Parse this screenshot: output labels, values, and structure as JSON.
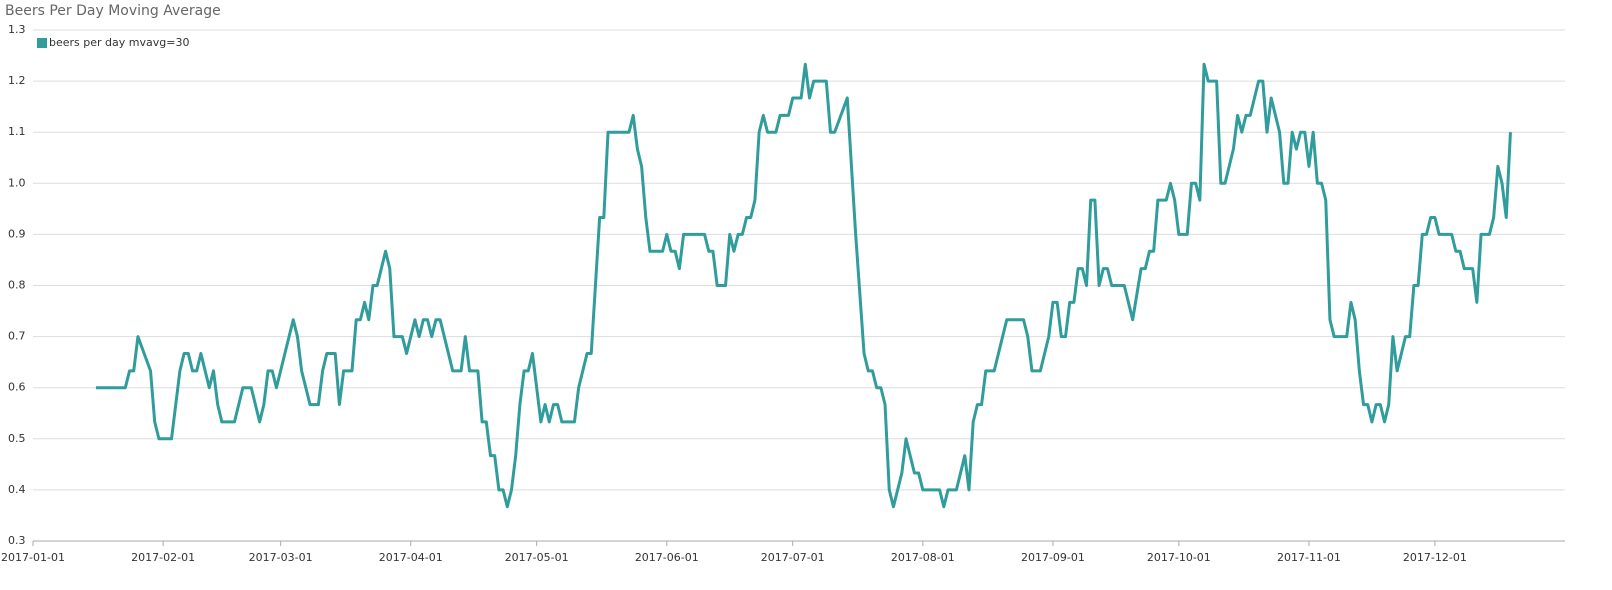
{
  "chart_data": {
    "type": "line",
    "title": "Beers Per Day Moving Average",
    "x": [
      "2017-01-16",
      "2017-01-23",
      "2017-01-24",
      "2017-01-25",
      "2017-01-26",
      "2017-01-29",
      "2017-01-30",
      "2017-01-31",
      "2017-02-03",
      "2017-02-05",
      "2017-02-06",
      "2017-02-07",
      "2017-02-08",
      "2017-02-09",
      "2017-02-10",
      "2017-02-12",
      "2017-02-13",
      "2017-02-14",
      "2017-02-15",
      "2017-02-18",
      "2017-02-20",
      "2017-02-22",
      "2017-02-24",
      "2017-02-25",
      "2017-02-26",
      "2017-02-27",
      "2017-02-28",
      "2017-03-04",
      "2017-03-05",
      "2017-03-06",
      "2017-03-08",
      "2017-03-10",
      "2017-03-11",
      "2017-03-12",
      "2017-03-14",
      "2017-03-15",
      "2017-03-16",
      "2017-03-18",
      "2017-03-19",
      "2017-03-20",
      "2017-03-21",
      "2017-03-22",
      "2017-03-23",
      "2017-03-24",
      "2017-03-26",
      "2017-03-27",
      "2017-03-28",
      "2017-03-30",
      "2017-03-31",
      "2017-04-02",
      "2017-04-03",
      "2017-04-04",
      "2017-04-05",
      "2017-04-06",
      "2017-04-07",
      "2017-04-08",
      "2017-04-11",
      "2017-04-13",
      "2017-04-14",
      "2017-04-15",
      "2017-04-17",
      "2017-04-18",
      "2017-04-19",
      "2017-04-20",
      "2017-04-21",
      "2017-04-22",
      "2017-04-23",
      "2017-04-24",
      "2017-04-25",
      "2017-04-26",
      "2017-04-27",
      "2017-04-28",
      "2017-04-29",
      "2017-04-30",
      "2017-05-02",
      "2017-05-03",
      "2017-05-04",
      "2017-05-05",
      "2017-05-06",
      "2017-05-07",
      "2017-05-10",
      "2017-05-11",
      "2017-05-13",
      "2017-05-14",
      "2017-05-16",
      "2017-05-17",
      "2017-05-18",
      "2017-05-23",
      "2017-05-24",
      "2017-05-25",
      "2017-05-26",
      "2017-05-27",
      "2017-05-28",
      "2017-05-31",
      "2017-06-01",
      "2017-06-02",
      "2017-06-03",
      "2017-06-04",
      "2017-06-05",
      "2017-06-10",
      "2017-06-11",
      "2017-06-12",
      "2017-06-13",
      "2017-06-15",
      "2017-06-16",
      "2017-06-17",
      "2017-06-18",
      "2017-06-19",
      "2017-06-20",
      "2017-06-21",
      "2017-06-22",
      "2017-06-23",
      "2017-06-24",
      "2017-06-25",
      "2017-06-27",
      "2017-06-28",
      "2017-06-30",
      "2017-07-01",
      "2017-07-03",
      "2017-07-04",
      "2017-07-05",
      "2017-07-06",
      "2017-07-09",
      "2017-07-10",
      "2017-07-11",
      "2017-07-14",
      "2017-07-16",
      "2017-07-18",
      "2017-07-19",
      "2017-07-20",
      "2017-07-21",
      "2017-07-22",
      "2017-07-23",
      "2017-07-24",
      "2017-07-25",
      "2017-07-27",
      "2017-07-28",
      "2017-07-30",
      "2017-07-31",
      "2017-08-01",
      "2017-08-05",
      "2017-08-06",
      "2017-08-07",
      "2017-08-09",
      "2017-08-11",
      "2017-08-12",
      "2017-08-13",
      "2017-08-14",
      "2017-08-15",
      "2017-08-16",
      "2017-08-18",
      "2017-08-21",
      "2017-08-25",
      "2017-08-26",
      "2017-08-27",
      "2017-08-29",
      "2017-08-31",
      "2017-09-01",
      "2017-09-02",
      "2017-09-03",
      "2017-09-04",
      "2017-09-05",
      "2017-09-06",
      "2017-09-07",
      "2017-09-08",
      "2017-09-09",
      "2017-09-10",
      "2017-09-11",
      "2017-09-12",
      "2017-09-13",
      "2017-09-14",
      "2017-09-15",
      "2017-09-18",
      "2017-09-20",
      "2017-09-22",
      "2017-09-23",
      "2017-09-24",
      "2017-09-25",
      "2017-09-26",
      "2017-09-28",
      "2017-09-29",
      "2017-09-30",
      "2017-10-01",
      "2017-10-03",
      "2017-10-04",
      "2017-10-05",
      "2017-10-06",
      "2017-10-07",
      "2017-10-08",
      "2017-10-10",
      "2017-10-11",
      "2017-10-12",
      "2017-10-14",
      "2017-10-15",
      "2017-10-16",
      "2017-10-17",
      "2017-10-18",
      "2017-10-20",
      "2017-10-21",
      "2017-10-22",
      "2017-10-23",
      "2017-10-25",
      "2017-10-26",
      "2017-10-27",
      "2017-10-28",
      "2017-10-29",
      "2017-10-30",
      "2017-10-31",
      "2017-11-01",
      "2017-11-02",
      "2017-11-03",
      "2017-11-04",
      "2017-11-05",
      "2017-11-06",
      "2017-11-07",
      "2017-11-10",
      "2017-11-11",
      "2017-11-12",
      "2017-11-13",
      "2017-11-14",
      "2017-11-15",
      "2017-11-16",
      "2017-11-17",
      "2017-11-18",
      "2017-11-19",
      "2017-11-20",
      "2017-11-21",
      "2017-11-22",
      "2017-11-24",
      "2017-11-25",
      "2017-11-26",
      "2017-11-27",
      "2017-11-28",
      "2017-11-29",
      "2017-11-30",
      "2017-12-01",
      "2017-12-02",
      "2017-12-05",
      "2017-12-06",
      "2017-12-07",
      "2017-12-08",
      "2017-12-10",
      "2017-12-11",
      "2017-12-12",
      "2017-12-14",
      "2017-12-15",
      "2017-12-16",
      "2017-12-17",
      "2017-12-18",
      "2017-12-19"
    ],
    "series": [
      {
        "name": "beers per day mvavg=30",
        "color": "#319c9c",
        "values": [
          0.6,
          0.6,
          0.633,
          0.633,
          0.7,
          0.633,
          0.533,
          0.5,
          0.5,
          0.633,
          0.667,
          0.667,
          0.633,
          0.633,
          0.667,
          0.6,
          0.633,
          0.567,
          0.533,
          0.533,
          0.6,
          0.6,
          0.533,
          0.567,
          0.633,
          0.633,
          0.6,
          0.733,
          0.7,
          0.633,
          0.567,
          0.567,
          0.633,
          0.667,
          0.667,
          0.567,
          0.633,
          0.633,
          0.733,
          0.733,
          0.767,
          0.733,
          0.8,
          0.8,
          0.867,
          0.833,
          0.7,
          0.7,
          0.667,
          0.733,
          0.7,
          0.733,
          0.733,
          0.7,
          0.733,
          0.733,
          0.633,
          0.633,
          0.7,
          0.633,
          0.633,
          0.533,
          0.533,
          0.467,
          0.467,
          0.4,
          0.4,
          0.367,
          0.4,
          0.467,
          0.567,
          0.633,
          0.633,
          0.667,
          0.533,
          0.567,
          0.533,
          0.567,
          0.567,
          0.533,
          0.533,
          0.6,
          0.667,
          0.667,
          0.933,
          0.933,
          1.1,
          1.1,
          1.133,
          1.067,
          1.033,
          0.933,
          0.867,
          0.867,
          0.9,
          0.867,
          0.867,
          0.833,
          0.9,
          0.9,
          0.867,
          0.867,
          0.8,
          0.8,
          0.9,
          0.867,
          0.9,
          0.9,
          0.933,
          0.933,
          0.967,
          1.1,
          1.133,
          1.1,
          1.1,
          1.133,
          1.133,
          1.167,
          1.167,
          1.233,
          1.167,
          1.2,
          1.2,
          1.1,
          1.1,
          1.167,
          0.9,
          0.667,
          0.633,
          0.633,
          0.6,
          0.6,
          0.567,
          0.4,
          0.367,
          0.433,
          0.5,
          0.433,
          0.433,
          0.4,
          0.4,
          0.367,
          0.4,
          0.4,
          0.467,
          0.4,
          0.533,
          0.567,
          0.567,
          0.633,
          0.633,
          0.733,
          0.733,
          0.7,
          0.633,
          0.633,
          0.7,
          0.767,
          0.767,
          0.7,
          0.7,
          0.767,
          0.767,
          0.833,
          0.833,
          0.8,
          0.967,
          0.967,
          0.8,
          0.833,
          0.833,
          0.8,
          0.8,
          0.733,
          0.833,
          0.833,
          0.867,
          0.867,
          0.967,
          0.967,
          1.0,
          0.967,
          0.9,
          0.9,
          1.0,
          1.0,
          0.967,
          1.233,
          1.2,
          1.2,
          1.0,
          1.0,
          1.067,
          1.133,
          1.1,
          1.133,
          1.133,
          1.2,
          1.2,
          1.1,
          1.167,
          1.1,
          1.0,
          1.0,
          1.1,
          1.067,
          1.1,
          1.1,
          1.033,
          1.1,
          1.0,
          1.0,
          0.967,
          0.733,
          0.7,
          0.7,
          0.767,
          0.733,
          0.633,
          0.567,
          0.567,
          0.533,
          0.567,
          0.567,
          0.533,
          0.567,
          0.7,
          0.633,
          0.7,
          0.7,
          0.8,
          0.8,
          0.9,
          0.9,
          0.933,
          0.933,
          0.9,
          0.9,
          0.867,
          0.867,
          0.833,
          0.833,
          0.767,
          0.9,
          0.9,
          0.933,
          1.033,
          1.0,
          0.933,
          1.1
        ]
      }
    ],
    "xlim": [
      "2017-01-01",
      "2018-01-01"
    ],
    "xticks": [
      "2017-01-01",
      "2017-02-01",
      "2017-03-01",
      "2017-04-01",
      "2017-05-01",
      "2017-06-01",
      "2017-07-01",
      "2017-08-01",
      "2017-09-01",
      "2017-10-01",
      "2017-11-01",
      "2017-12-01"
    ],
    "ylim": [
      0.3,
      1.3
    ],
    "yticks": [
      {
        "value": 0.3,
        "label": "0.3"
      },
      {
        "value": 0.4,
        "label": "0.4"
      },
      {
        "value": 0.5,
        "label": "0.5"
      },
      {
        "value": 0.6,
        "label": "0.6"
      },
      {
        "value": 0.7,
        "label": "0.7"
      },
      {
        "value": 0.8,
        "label": "0.8"
      },
      {
        "value": 0.9,
        "label": "0.9"
      },
      {
        "value": 1.0,
        "label": "1.0"
      },
      {
        "value": 1.1,
        "label": "1.1"
      },
      {
        "value": 1.2,
        "label": "1.2"
      },
      {
        "value": 1.3,
        "label": "1.3"
      }
    ],
    "grid": true
  }
}
